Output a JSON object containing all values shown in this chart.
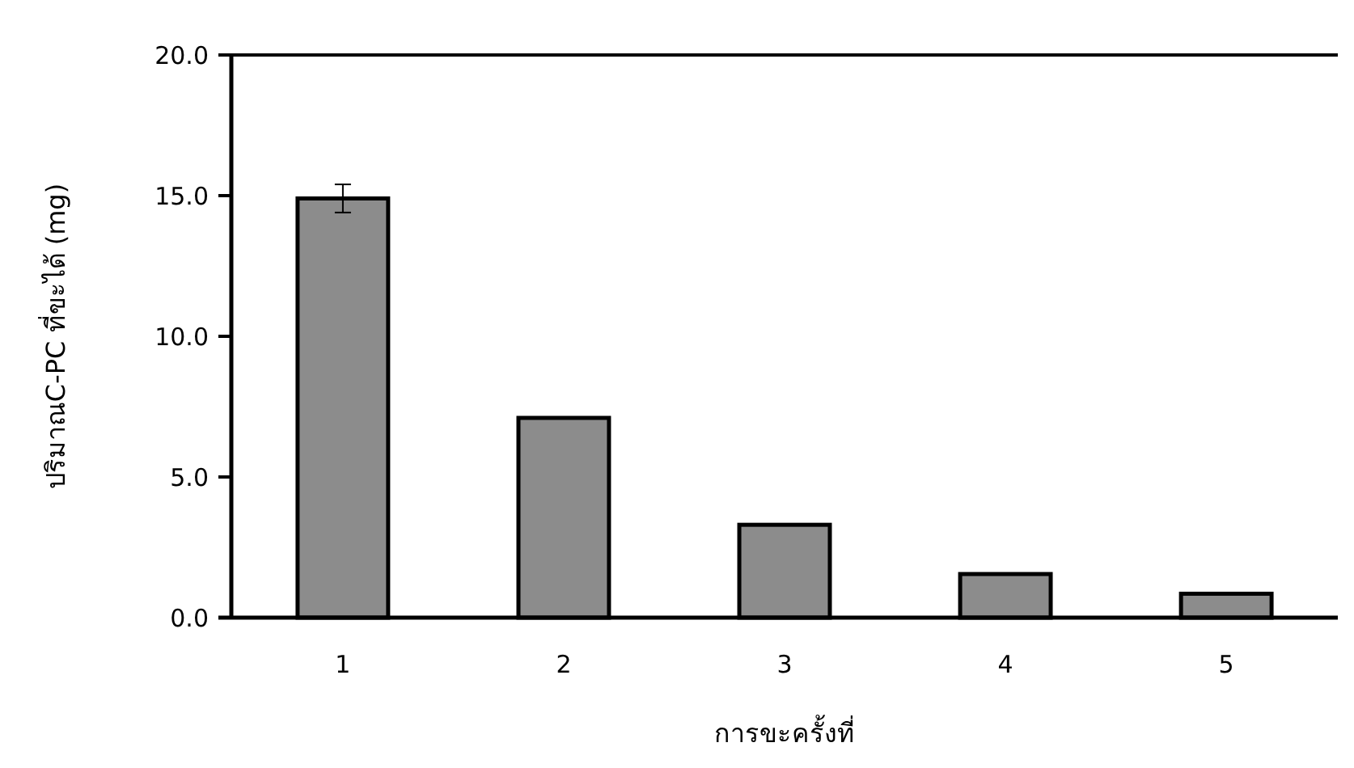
{
  "chart_data": {
    "type": "bar",
    "xlabel": "การขะครั้งที่",
    "ylabel": "ปริมาณC-PC ที่ขะได้ (mg)",
    "categories": [
      "1",
      "2",
      "3",
      "4",
      "5"
    ],
    "values": [
      14.9,
      7.1,
      3.3,
      1.55,
      0.85
    ],
    "errors": [
      0.5,
      null,
      null,
      null,
      null
    ],
    "color": "#8c8c8c",
    "ylim": [
      0,
      20
    ],
    "yticks": [
      {
        "value": 0,
        "label": "0.0"
      },
      {
        "value": 5,
        "label": "5.0"
      },
      {
        "value": 10,
        "label": "10.0"
      },
      {
        "value": 15,
        "label": "15.0"
      },
      {
        "value": 20,
        "label": "20.0"
      }
    ],
    "grid": false
  }
}
